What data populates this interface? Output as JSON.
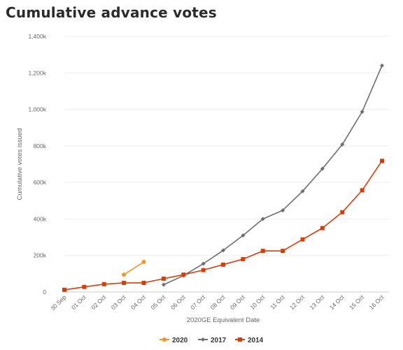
{
  "title": "Cumulative advance votes",
  "chart_data": {
    "type": "line",
    "title": "Cumulative advance votes",
    "xlabel": "2020GE Equivalent Date",
    "ylabel": "Cumulative votes issued",
    "categories": [
      "30 Sep",
      "01 Oct",
      "02 Oct",
      "03 Oct",
      "04 Oct",
      "05 Oct",
      "06 Oct",
      "07 Oct",
      "08 Oct",
      "09 Oct",
      "10 Oct",
      "11 Oct",
      "12 Oct",
      "13 Oct",
      "14 Oct",
      "15 Oct",
      "16 Oct"
    ],
    "yticks": [
      "0",
      "200k",
      "400k",
      "600k",
      "800k",
      "1,000k",
      "1,200k",
      "1,400k"
    ],
    "ylim": [
      0,
      1400000
    ],
    "ytick_values": [
      0,
      200000,
      400000,
      600000,
      800000,
      1000000,
      1200000,
      1400000
    ],
    "grid": true,
    "legend_position": "bottom",
    "series": [
      {
        "name": "2020",
        "color": "#f7941d",
        "marker": "circle",
        "values": [
          null,
          null,
          null,
          95000,
          165000,
          null,
          null,
          null,
          null,
          null,
          null,
          null,
          null,
          null,
          null,
          null,
          null
        ]
      },
      {
        "name": "2017",
        "color": "#6d6e71",
        "marker": "diamond",
        "values": [
          null,
          null,
          null,
          null,
          null,
          40000,
          90000,
          155000,
          228000,
          310000,
          400000,
          447000,
          552000,
          675000,
          808000,
          987000,
          1240000
        ]
      },
      {
        "name": "2014",
        "color": "#d63e09",
        "marker": "square",
        "values": [
          12000,
          28000,
          43000,
          50000,
          50000,
          73000,
          95000,
          120000,
          150000,
          180000,
          225000,
          225000,
          288000,
          350000,
          437000,
          557000,
          718000
        ]
      }
    ]
  }
}
